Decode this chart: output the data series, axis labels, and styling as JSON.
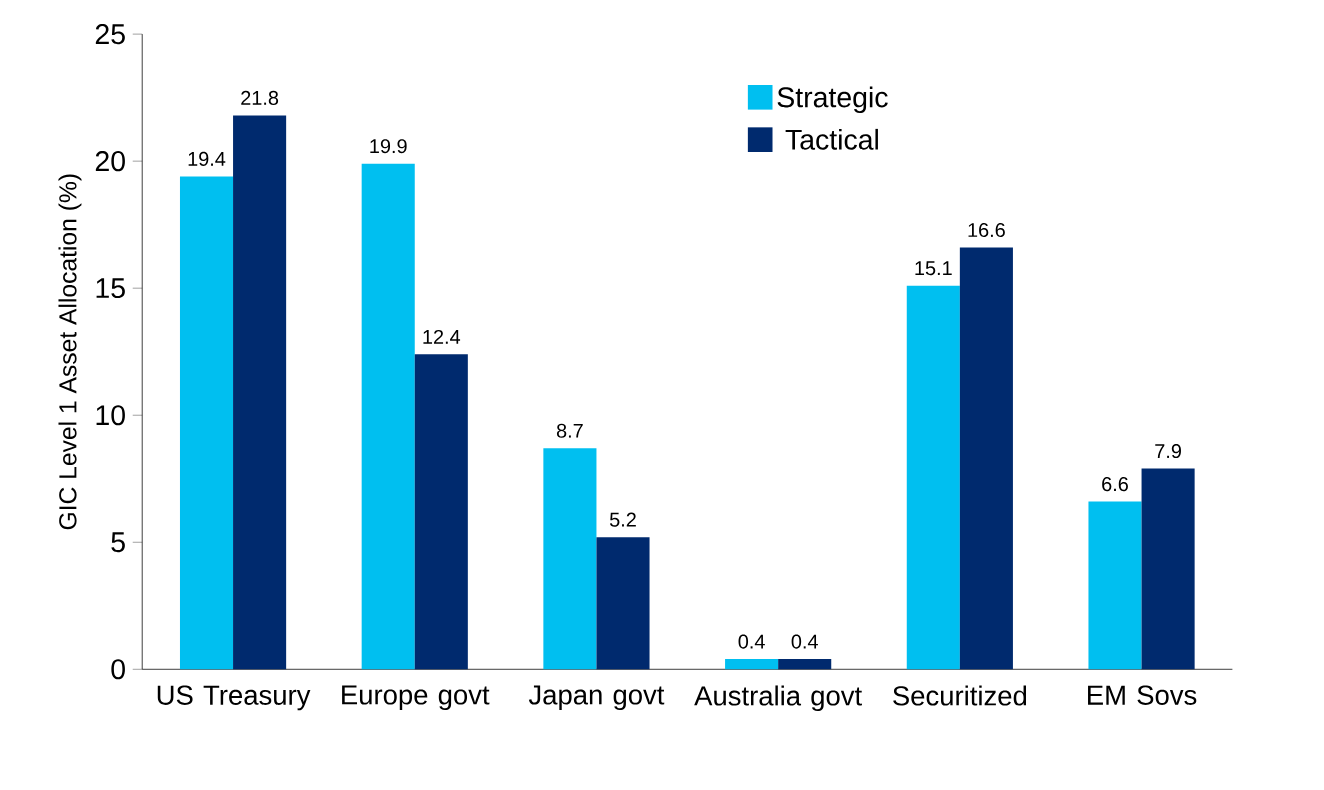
{
  "chart_data": {
    "type": "bar",
    "ylabel": "GIC Level 1 Asset Allocation (%)",
    "categories": [
      "US Treasury",
      "Europe govt",
      "Japan govt",
      "Australia govt",
      "Securitized",
      "EM Sovs"
    ],
    "series": [
      {
        "name": "Strategic",
        "color": "#00bff0",
        "values": [
          19.4,
          19.9,
          8.7,
          0.4,
          15.1,
          6.6
        ]
      },
      {
        "name": "Tactical",
        "color": "#002a6e",
        "values": [
          21.8,
          12.4,
          5.2,
          0.4,
          16.6,
          7.9
        ]
      }
    ],
    "ylim": [
      0,
      25
    ],
    "yticks": [
      0,
      5,
      10,
      15,
      20,
      25
    ],
    "data_labels": true,
    "legend": "top right",
    "grid": false
  }
}
